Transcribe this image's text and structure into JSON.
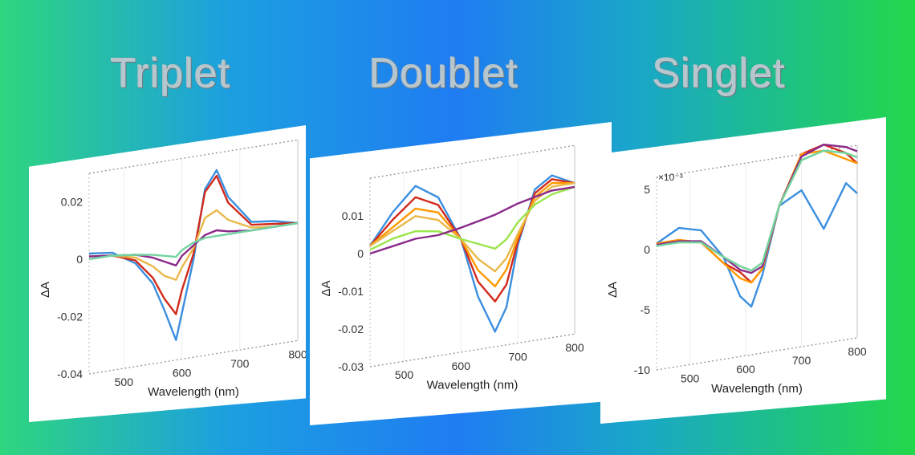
{
  "titles": [
    "Triplet",
    "Doublet",
    "Singlet"
  ],
  "colors": [
    "#3b8fe0",
    "#ff9900",
    "#e8b84a",
    "#d12a1c",
    "#9ae54a",
    "#72d4a0",
    "#8b2a8a"
  ],
  "chart_data": [
    {
      "type": "line",
      "title": "Triplet",
      "xlabel": "Wavelength (nm)",
      "ylabel": "ΔA",
      "xlim": [
        440,
        800
      ],
      "ylim": [
        -0.04,
        0.03
      ],
      "xticks": [
        500,
        600,
        700,
        800
      ],
      "yticks": [
        0.02,
        0,
        -0.02,
        -0.04
      ],
      "yticklabels": [
        "0.02",
        "0",
        "-0.02",
        "-0.04"
      ],
      "x": [
        440,
        480,
        520,
        550,
        570,
        590,
        600,
        620,
        640,
        660,
        680,
        720,
        760,
        800
      ],
      "series": [
        {
          "color": "#3b8fe0",
          "values": [
            0.002,
            0.001,
            -0.004,
            -0.012,
            -0.022,
            -0.033,
            -0.024,
            -0.006,
            0.018,
            0.024,
            0.014,
            0.004,
            0.003,
            0.001
          ]
        },
        {
          "color": "#d12a1c",
          "values": [
            0.001,
            0.0,
            -0.003,
            -0.01,
            -0.018,
            -0.024,
            -0.016,
            -0.004,
            0.017,
            0.022,
            0.012,
            0.003,
            0.002,
            0.001
          ]
        },
        {
          "color": "#e8b84a",
          "values": [
            0.001,
            0.0,
            -0.002,
            -0.006,
            -0.01,
            -0.012,
            -0.008,
            -0.002,
            0.008,
            0.01,
            0.006,
            0.002,
            0.001,
            0.001
          ]
        },
        {
          "color": "#8b2a8a",
          "values": [
            0.001,
            0.0,
            -0.001,
            -0.003,
            -0.005,
            -0.007,
            -0.004,
            -0.001,
            0.002,
            0.003,
            0.002,
            0.001,
            0.001,
            0.001
          ]
        },
        {
          "color": "#72d4a0",
          "values": [
            0.0,
            0.0,
            -0.001,
            -0.002,
            -0.003,
            -0.004,
            -0.002,
            0.0,
            0.001,
            0.001,
            0.001,
            0.001,
            0.001,
            0.001
          ]
        }
      ]
    },
    {
      "type": "line",
      "title": "Doublet",
      "xlabel": "Wavelength (nm)",
      "ylabel": "ΔA",
      "xlim": [
        440,
        800
      ],
      "ylim": [
        -0.03,
        0.02
      ],
      "xticks": [
        500,
        600,
        700,
        800
      ],
      "yticks": [
        0.01,
        0,
        -0.01,
        -0.02,
        -0.03
      ],
      "yticklabels": [
        "0.01",
        "0",
        "-0.01",
        "-0.02",
        "-0.03"
      ],
      "x": [
        440,
        480,
        520,
        560,
        600,
        630,
        660,
        680,
        700,
        730,
        760,
        800
      ],
      "series": [
        {
          "color": "#3b8fe0",
          "values": [
            0.002,
            0.01,
            0.016,
            0.012,
            0.0,
            -0.016,
            -0.026,
            -0.02,
            -0.004,
            0.01,
            0.013,
            0.01
          ]
        },
        {
          "color": "#d12a1c",
          "values": [
            0.002,
            0.008,
            0.013,
            0.01,
            0.0,
            -0.012,
            -0.018,
            -0.014,
            -0.003,
            0.009,
            0.012,
            0.01
          ]
        },
        {
          "color": "#ff9900",
          "values": [
            0.002,
            0.006,
            0.01,
            0.008,
            0.0,
            -0.009,
            -0.014,
            -0.01,
            -0.002,
            0.008,
            0.011,
            0.01
          ]
        },
        {
          "color": "#e8b84a",
          "values": [
            0.002,
            0.005,
            0.008,
            0.006,
            0.0,
            -0.006,
            -0.01,
            -0.007,
            -0.001,
            0.007,
            0.01,
            0.01
          ]
        },
        {
          "color": "#9ae54a",
          "values": [
            0.001,
            0.003,
            0.004,
            0.003,
            0.0,
            -0.002,
            -0.004,
            -0.002,
            0.002,
            0.006,
            0.008,
            0.009
          ]
        },
        {
          "color": "#8b2a8a",
          "values": [
            0.0,
            0.001,
            0.002,
            0.002,
            0.003,
            0.004,
            0.005,
            0.006,
            0.007,
            0.008,
            0.009,
            0.009
          ]
        }
      ]
    },
    {
      "type": "line",
      "title": "Singlet",
      "xlabel": "Wavelength (nm)",
      "ylabel": "ΔA",
      "yscale_label": "×10⁻³",
      "xlim": [
        440,
        800
      ],
      "ylim": [
        -10,
        6
      ],
      "xticks": [
        500,
        600,
        700,
        800
      ],
      "yticks": [
        5,
        0,
        -5,
        -10
      ],
      "yticklabels": [
        "5",
        "0",
        "-5",
        "-10"
      ],
      "x": [
        440,
        480,
        520,
        560,
        590,
        610,
        630,
        660,
        700,
        740,
        780,
        800
      ],
      "series": [
        {
          "color": "#3b8fe0",
          "values": [
            0.5,
            1.5,
            1.0,
            -1.5,
            -5.0,
            -6.0,
            -3.5,
            2.0,
            3.0,
            -0.5,
            3.0,
            2.0
          ]
        },
        {
          "color": "#d12a1c",
          "values": [
            0.5,
            0.5,
            0.0,
            -2.0,
            -3.0,
            -4.0,
            -3.0,
            2.0,
            6.0,
            6.5,
            5.5,
            4.5
          ]
        },
        {
          "color": "#ff9900",
          "values": [
            0.5,
            0.5,
            0.0,
            -2.0,
            -3.5,
            -4.0,
            -3.0,
            2.0,
            6.0,
            6.0,
            5.0,
            4.5
          ]
        },
        {
          "color": "#9ae54a",
          "values": [
            0.3,
            0.3,
            0.0,
            -1.5,
            -2.5,
            -3.0,
            -2.5,
            2.0,
            5.5,
            6.0,
            5.5,
            5.0
          ]
        },
        {
          "color": "#8b2a8a",
          "values": [
            0.4,
            0.4,
            0.1,
            -1.5,
            -2.8,
            -3.2,
            -2.8,
            2.0,
            5.8,
            6.5,
            6.0,
            5.5
          ]
        },
        {
          "color": "#72d4a0",
          "values": [
            0.3,
            0.3,
            0.0,
            -1.5,
            -2.5,
            -3.0,
            -2.5,
            2.0,
            5.5,
            6.0,
            5.5,
            5.0
          ]
        }
      ]
    }
  ]
}
